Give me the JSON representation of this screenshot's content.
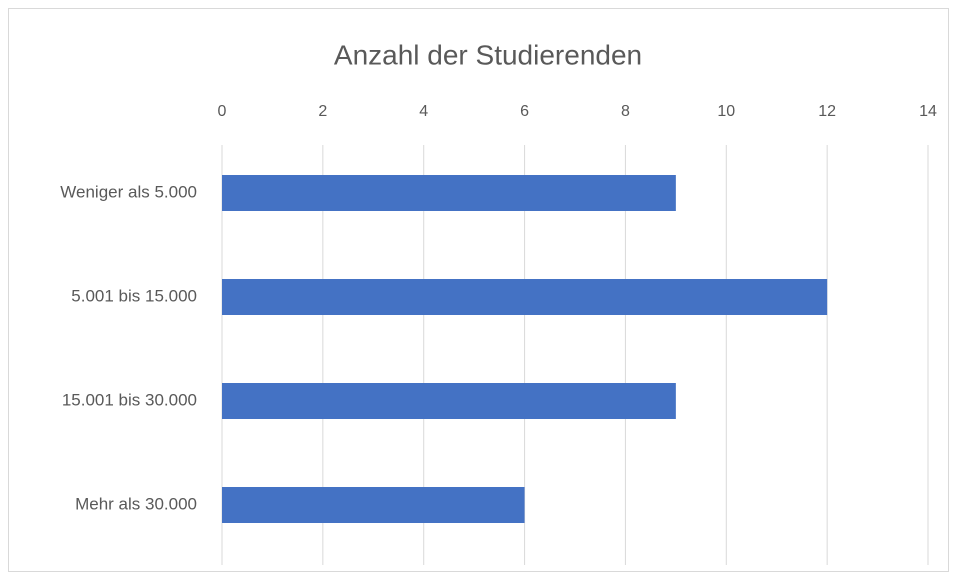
{
  "chart_data": {
    "type": "bar",
    "orientation": "horizontal",
    "title": "Anzahl der Studierenden",
    "categories": [
      "Weniger als 5.000",
      "5.001 bis 15.000",
      "15.001 bis 30.000",
      "Mehr als 30.000"
    ],
    "values": [
      9,
      12,
      9,
      6
    ],
    "color": "#4472c4",
    "xlim": [
      0,
      14
    ],
    "xticks": [
      0,
      2,
      4,
      6,
      8,
      10,
      12,
      14
    ],
    "grid": true
  }
}
